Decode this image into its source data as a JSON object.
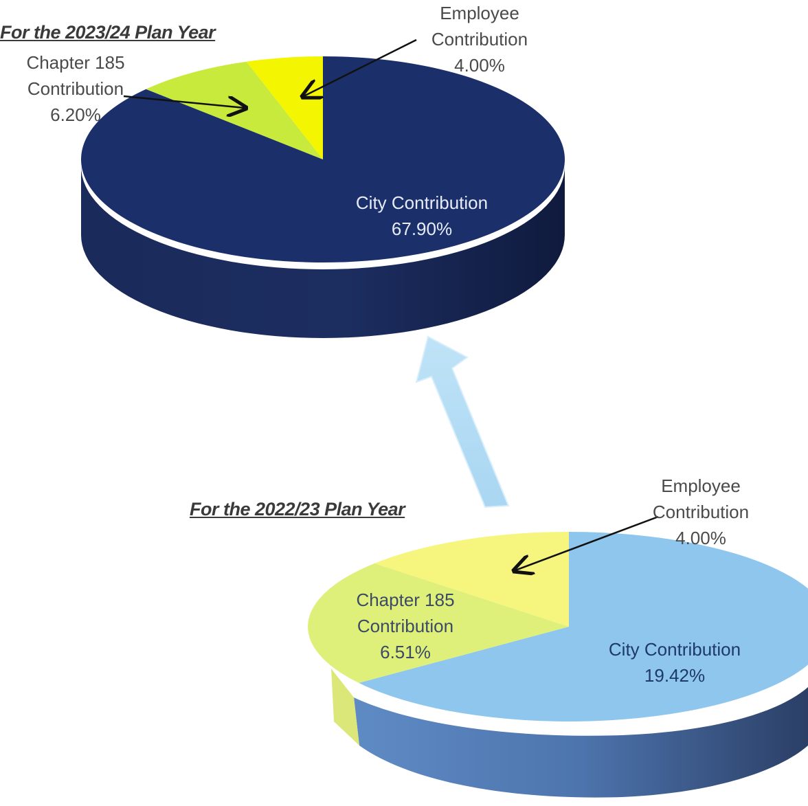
{
  "chart_data": [
    {
      "type": "pie",
      "title": "For the 2023/24 Plan Year",
      "slices": [
        {
          "name": "City Contribution",
          "label": "City Contribution",
          "value": 67.9,
          "display": "67.90%",
          "color": "#1b2f6b"
        },
        {
          "name": "Chapter 185 Contribution",
          "label": "Chapter 185 Contribution",
          "value": 6.2,
          "display": "6.20%",
          "color": "#c8ea3c"
        },
        {
          "name": "Employee Contribution",
          "label": "Employee Contribution",
          "value": 4.0,
          "display": "4.00%",
          "color": "#f4f500"
        }
      ]
    },
    {
      "type": "pie",
      "title": "For the 2022/23 Plan Year",
      "slices": [
        {
          "name": "City Contribution",
          "label": "City Contribution",
          "value": 19.42,
          "display": "19.42%",
          "color": "#8ec6ee"
        },
        {
          "name": "Chapter 185 Contribution",
          "label": "Chapter 185 Contribution",
          "value": 6.51,
          "display": "6.51%",
          "color": "#dff07a"
        },
        {
          "name": "Employee Contribution",
          "label": "Employee Contribution",
          "value": 4.0,
          "display": "4.00%",
          "color": "#f6f57e"
        }
      ]
    }
  ]
}
